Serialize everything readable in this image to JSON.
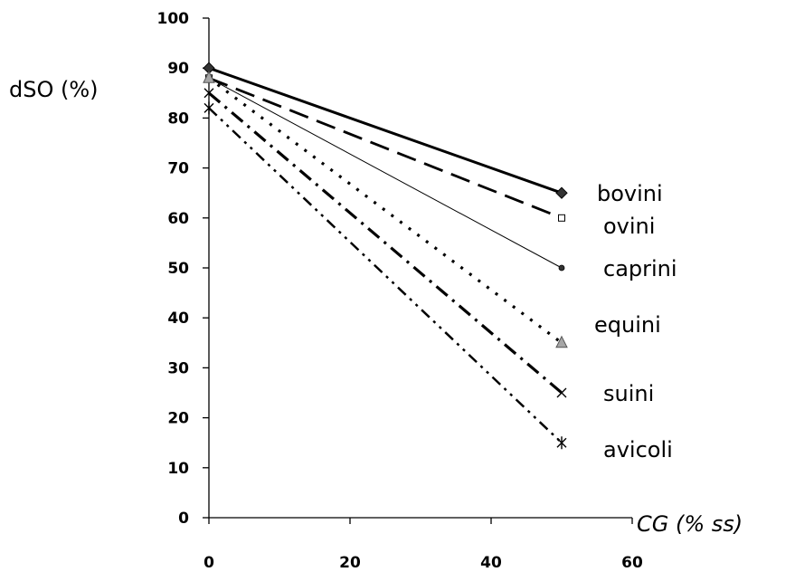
{
  "chart_data": {
    "type": "line",
    "xlabel": "CG (% ss)",
    "ylabel": "dSO (%)",
    "xlim": [
      0,
      60
    ],
    "ylim": [
      0,
      100
    ],
    "x_ticks": [
      0,
      20,
      40,
      60
    ],
    "y_ticks": [
      0,
      10,
      20,
      30,
      40,
      50,
      60,
      70,
      80,
      90,
      100
    ],
    "grid": false,
    "legend": "labels placed at line ends on the right",
    "series": [
      {
        "name": "bovini",
        "x": [
          0,
          50
        ],
        "values": [
          90,
          65
        ],
        "marker": "diamond",
        "line_style": "solid-thick",
        "color": "#000000"
      },
      {
        "name": "ovini",
        "x": [
          0,
          50
        ],
        "values": [
          88,
          60
        ],
        "marker": "square-open",
        "line_style": "long-dash",
        "color": "#000000"
      },
      {
        "name": "caprini",
        "x": [
          0,
          50
        ],
        "values": [
          88,
          50
        ],
        "marker": "circle",
        "line_style": "solid-thin",
        "color": "#000000"
      },
      {
        "name": "equini",
        "x": [
          0,
          50
        ],
        "values": [
          88,
          35
        ],
        "marker": "triangle",
        "line_style": "dotted",
        "color": "#000000"
      },
      {
        "name": "suini",
        "x": [
          0,
          50
        ],
        "values": [
          85,
          25
        ],
        "marker": "x",
        "line_style": "dash-dot",
        "color": "#000000"
      },
      {
        "name": "avicoli",
        "x": [
          0,
          50
        ],
        "values": [
          82,
          15
        ],
        "marker": "asterisk",
        "line_style": "dash-dot-dot",
        "color": "#000000"
      }
    ],
    "marker_fill_gray": "#a6a6a6"
  }
}
